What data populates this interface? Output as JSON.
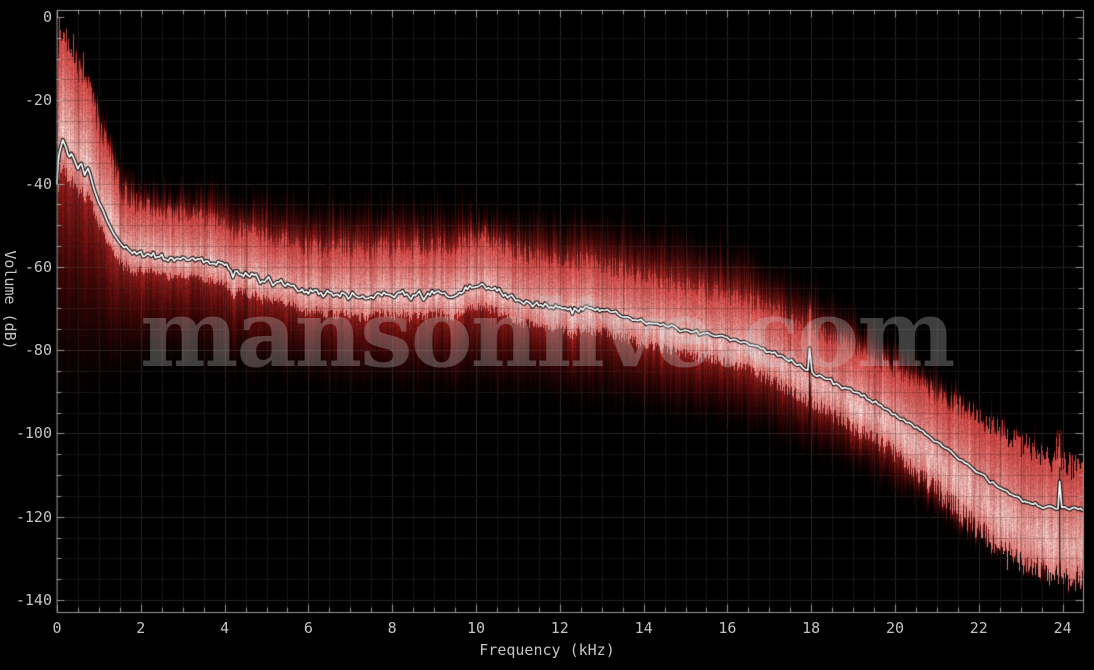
{
  "watermark": {
    "text": "mansonlive.com"
  },
  "chart_data": {
    "type": "area",
    "title": "",
    "xlabel": "Frequency (kHz)",
    "ylabel": "Volume (dB)",
    "xlim": [
      0,
      24
    ],
    "ylim": [
      -140,
      0
    ],
    "grid": true,
    "x_ticks": [
      0,
      2,
      4,
      6,
      8,
      10,
      12,
      14,
      16,
      18,
      20,
      22,
      24
    ],
    "y_ticks": [
      0,
      -20,
      -40,
      -60,
      -80,
      -100,
      -120,
      -140
    ],
    "x_minor_step": 0.5,
    "y_minor_step": 5,
    "series": [
      {
        "name": "average-spectrum-line",
        "unit": "dB",
        "points": [
          [
            0,
            -40
          ],
          [
            0.03,
            -34.5
          ],
          [
            0.06,
            -32.5
          ],
          [
            0.1,
            -31
          ],
          [
            0.14,
            -29.5
          ],
          [
            0.18,
            -30.5
          ],
          [
            0.22,
            -31.5
          ],
          [
            0.26,
            -33
          ],
          [
            0.3,
            -33.6
          ],
          [
            0.34,
            -32.8
          ],
          [
            0.38,
            -33.5
          ],
          [
            0.42,
            -34.5
          ],
          [
            0.46,
            -35.5
          ],
          [
            0.5,
            -36.5
          ],
          [
            0.54,
            -35.6
          ],
          [
            0.58,
            -35.2
          ],
          [
            0.62,
            -36.5
          ],
          [
            0.66,
            -38
          ],
          [
            0.7,
            -37
          ],
          [
            0.74,
            -36.3
          ],
          [
            0.78,
            -37.5
          ],
          [
            0.82,
            -39
          ],
          [
            0.86,
            -40.5
          ],
          [
            0.9,
            -41.8
          ],
          [
            0.95,
            -43.2
          ],
          [
            1,
            -44.6
          ],
          [
            1.05,
            -45.5
          ],
          [
            1.1,
            -46.5
          ],
          [
            1.15,
            -47.8
          ],
          [
            1.2,
            -49
          ],
          [
            1.25,
            -50
          ],
          [
            1.3,
            -51
          ],
          [
            1.35,
            -52
          ],
          [
            1.4,
            -52.8
          ],
          [
            1.45,
            -53.5
          ],
          [
            1.5,
            -54.2
          ],
          [
            1.55,
            -54.8
          ],
          [
            1.6,
            -55.4
          ],
          [
            1.65,
            -55.1
          ],
          [
            1.7,
            -55.8
          ],
          [
            1.75,
            -56.2
          ],
          [
            1.8,
            -56.8
          ],
          [
            1.85,
            -56.3
          ],
          [
            1.9,
            -57
          ],
          [
            1.95,
            -56.6
          ],
          [
            2,
            -56.3
          ],
          [
            2.1,
            -57.4
          ],
          [
            2.2,
            -57
          ],
          [
            2.3,
            -56.6
          ],
          [
            2.4,
            -57.6
          ],
          [
            2.5,
            -57
          ],
          [
            2.6,
            -58.2
          ],
          [
            2.7,
            -57.8
          ],
          [
            2.8,
            -58.6
          ],
          [
            2.9,
            -58
          ],
          [
            3,
            -57.7
          ],
          [
            3.1,
            -58.4
          ],
          [
            3.2,
            -58
          ],
          [
            3.3,
            -58.5
          ],
          [
            3.4,
            -58.2
          ],
          [
            3.5,
            -59
          ],
          [
            3.6,
            -58.6
          ],
          [
            3.7,
            -59.2
          ],
          [
            3.8,
            -59.6
          ],
          [
            3.9,
            -59
          ],
          [
            4,
            -59.6
          ],
          [
            4.1,
            -60.5
          ],
          [
            4.2,
            -62.6
          ],
          [
            4.3,
            -61
          ],
          [
            4.4,
            -61.8
          ],
          [
            4.5,
            -61.4
          ],
          [
            4.6,
            -62.4
          ],
          [
            4.7,
            -62
          ],
          [
            4.8,
            -62.8
          ],
          [
            4.9,
            -63.4
          ],
          [
            5,
            -63
          ],
          [
            5.1,
            -63.4
          ],
          [
            5.2,
            -64
          ],
          [
            5.3,
            -63.6
          ],
          [
            5.4,
            -64.2
          ],
          [
            5.5,
            -64
          ],
          [
            5.6,
            -64.6
          ],
          [
            5.7,
            -65.2
          ],
          [
            5.8,
            -65.8
          ],
          [
            5.9,
            -66.2
          ],
          [
            6,
            -66.5
          ],
          [
            6.1,
            -66
          ],
          [
            6.2,
            -65.6
          ],
          [
            6.3,
            -66.2
          ],
          [
            6.4,
            -66.6
          ],
          [
            6.5,
            -66.2
          ],
          [
            6.6,
            -67
          ],
          [
            6.7,
            -66.6
          ],
          [
            6.8,
            -66.2
          ],
          [
            6.9,
            -66.8
          ],
          [
            7,
            -67.2
          ],
          [
            7.1,
            -66.8
          ],
          [
            7.2,
            -67.4
          ],
          [
            7.3,
            -67
          ],
          [
            7.4,
            -67.6
          ],
          [
            7.5,
            -67.2
          ],
          [
            7.6,
            -66.8
          ],
          [
            7.7,
            -66.4
          ],
          [
            7.8,
            -66.1
          ],
          [
            7.9,
            -66.6
          ],
          [
            8,
            -67
          ],
          [
            8.1,
            -66.6
          ],
          [
            8.2,
            -66.2
          ],
          [
            8.3,
            -66.8
          ],
          [
            8.4,
            -67.2
          ],
          [
            8.5,
            -66.8
          ],
          [
            8.6,
            -66.4
          ],
          [
            8.7,
            -67
          ],
          [
            8.8,
            -67.2
          ],
          [
            8.9,
            -66.8
          ],
          [
            9,
            -66.4
          ],
          [
            9.1,
            -65.8
          ],
          [
            9.2,
            -66.4
          ],
          [
            9.3,
            -67
          ],
          [
            9.4,
            -67.3
          ],
          [
            9.5,
            -67
          ],
          [
            9.6,
            -66.2
          ],
          [
            9.7,
            -66
          ],
          [
            9.8,
            -65.4
          ],
          [
            9.9,
            -65
          ],
          [
            10,
            -64.8
          ],
          [
            10.1,
            -64.4
          ],
          [
            10.2,
            -64.6
          ],
          [
            10.3,
            -65
          ],
          [
            10.4,
            -65.4
          ],
          [
            10.5,
            -65.8
          ],
          [
            10.6,
            -66.2
          ],
          [
            10.7,
            -66.6
          ],
          [
            10.8,
            -67
          ],
          [
            10.9,
            -67.4
          ],
          [
            11,
            -68
          ],
          [
            11.1,
            -68.6
          ],
          [
            11.2,
            -68.2
          ],
          [
            11.3,
            -68.8
          ],
          [
            11.4,
            -69
          ],
          [
            11.5,
            -69.3
          ],
          [
            11.6,
            -69.6
          ],
          [
            11.7,
            -69.3
          ],
          [
            11.8,
            -69.6
          ],
          [
            11.9,
            -69.2
          ],
          [
            12,
            -69.6
          ],
          [
            12.1,
            -69.9
          ],
          [
            12.2,
            -70.3
          ],
          [
            12.3,
            -71.3
          ],
          [
            12.4,
            -70.3
          ],
          [
            12.5,
            -69.9
          ],
          [
            12.6,
            -69.6
          ],
          [
            12.7,
            -69.9
          ],
          [
            12.8,
            -70.2
          ],
          [
            12.9,
            -70
          ],
          [
            13,
            -70.3
          ],
          [
            13.2,
            -70.8
          ],
          [
            13.4,
            -71.4
          ],
          [
            13.6,
            -72
          ],
          [
            13.8,
            -72.8
          ],
          [
            14,
            -73.2
          ],
          [
            14.2,
            -73.6
          ],
          [
            14.4,
            -74
          ],
          [
            14.6,
            -74.4
          ],
          [
            14.8,
            -74.8
          ],
          [
            15,
            -75.2
          ],
          [
            15.2,
            -75.6
          ],
          [
            15.4,
            -76
          ],
          [
            15.6,
            -76.3
          ],
          [
            15.8,
            -76.6
          ],
          [
            16,
            -77
          ],
          [
            16.2,
            -77.5
          ],
          [
            16.4,
            -78
          ],
          [
            16.6,
            -78.8
          ],
          [
            16.8,
            -79.6
          ],
          [
            17,
            -80.4
          ],
          [
            17.2,
            -81.4
          ],
          [
            17.4,
            -82.2
          ],
          [
            17.6,
            -83.2
          ],
          [
            17.8,
            -84.2
          ],
          [
            17.92,
            -84.8
          ],
          [
            17.96,
            -79.5
          ],
          [
            18.02,
            -85.2
          ],
          [
            18.2,
            -86
          ],
          [
            18.4,
            -87
          ],
          [
            18.6,
            -88
          ],
          [
            18.8,
            -89
          ],
          [
            19,
            -90
          ],
          [
            19.2,
            -91
          ],
          [
            19.4,
            -92
          ],
          [
            19.6,
            -93
          ],
          [
            19.8,
            -94.2
          ],
          [
            20,
            -95.4
          ],
          [
            20.2,
            -96.6
          ],
          [
            20.4,
            -97.8
          ],
          [
            20.6,
            -99.2
          ],
          [
            20.8,
            -100.6
          ],
          [
            21,
            -102
          ],
          [
            21.2,
            -103.5
          ],
          [
            21.4,
            -105
          ],
          [
            21.6,
            -106.5
          ],
          [
            21.8,
            -108
          ],
          [
            22,
            -109.5
          ],
          [
            22.2,
            -111
          ],
          [
            22.4,
            -112.4
          ],
          [
            22.6,
            -113.6
          ],
          [
            22.8,
            -114.8
          ],
          [
            23,
            -115.8
          ],
          [
            23.1,
            -116.3
          ],
          [
            23.2,
            -116.6
          ],
          [
            23.3,
            -117
          ],
          [
            23.4,
            -117.3
          ],
          [
            23.6,
            -117.7
          ],
          [
            23.8,
            -117.9
          ],
          [
            23.89,
            -118.1
          ],
          [
            23.93,
            -111.5
          ],
          [
            23.98,
            -117.8
          ],
          [
            24.1,
            -118
          ],
          [
            24.5,
            -118.4
          ]
        ]
      }
    ],
    "density_envelopes": {
      "haze_top_db": [
        [
          0,
          -2
        ],
        [
          0.3,
          -6
        ],
        [
          0.6,
          -11
        ],
        [
          0.9,
          -17
        ],
        [
          1.2,
          -26
        ],
        [
          1.5,
          -33
        ],
        [
          2,
          -39
        ],
        [
          3,
          -40
        ],
        [
          4,
          -40
        ],
        [
          5,
          -42
        ],
        [
          6,
          -42.5
        ],
        [
          7,
          -43
        ],
        [
          8,
          -43
        ],
        [
          9,
          -44
        ],
        [
          10,
          -45
        ],
        [
          11,
          -45.5
        ],
        [
          12,
          -46
        ],
        [
          13,
          -47
        ],
        [
          14,
          -48.5
        ],
        [
          15,
          -50.5
        ],
        [
          16,
          -53
        ],
        [
          17,
          -57.5
        ],
        [
          18,
          -63
        ],
        [
          19,
          -70
        ],
        [
          20,
          -77.5
        ],
        [
          21,
          -86
        ],
        [
          22,
          -94.5
        ],
        [
          23,
          -102
        ],
        [
          24,
          -107
        ],
        [
          24.5,
          -109
        ]
      ],
      "bright_above_mean_db": [
        [
          0,
          32
        ],
        [
          0.5,
          26
        ],
        [
          1,
          18
        ],
        [
          1.5,
          13
        ],
        [
          2,
          11
        ],
        [
          4,
          10
        ],
        [
          6,
          10.5
        ],
        [
          8,
          11
        ],
        [
          10,
          11.5
        ],
        [
          12,
          11
        ],
        [
          14,
          10.5
        ],
        [
          16,
          10
        ],
        [
          18,
          10
        ],
        [
          20,
          10
        ],
        [
          21,
          11
        ],
        [
          22,
          13
        ],
        [
          23,
          15
        ],
        [
          24,
          16
        ],
        [
          24.5,
          16
        ]
      ],
      "bright_below_mean_db": [
        [
          0,
          6
        ],
        [
          2,
          4
        ],
        [
          8,
          4.5
        ],
        [
          14,
          5
        ],
        [
          16,
          5.5
        ],
        [
          18,
          7
        ],
        [
          20,
          9
        ],
        [
          21,
          11
        ],
        [
          22,
          13
        ],
        [
          23,
          15
        ],
        [
          24,
          16
        ],
        [
          24.5,
          16
        ]
      ],
      "fade_bottom_db": [
        [
          0,
          -97
        ],
        [
          0.5,
          -95
        ],
        [
          1,
          -92
        ],
        [
          1.5,
          -89
        ],
        [
          2,
          -86.5
        ],
        [
          3,
          -86
        ],
        [
          4,
          -88
        ],
        [
          5,
          -89
        ],
        [
          6,
          -90
        ],
        [
          8,
          -92
        ],
        [
          10,
          -92.5
        ],
        [
          12,
          -94
        ],
        [
          14,
          -96.5
        ],
        [
          16,
          -99.5
        ],
        [
          17,
          -102
        ],
        [
          18,
          -106
        ],
        [
          19,
          -110.5
        ],
        [
          20,
          -115.5
        ],
        [
          21,
          -121
        ],
        [
          22,
          -127
        ],
        [
          23,
          -132.5
        ],
        [
          24,
          -136
        ],
        [
          24.5,
          -137
        ]
      ]
    },
    "narrow_spikes": [
      {
        "freq_khz": 17.96,
        "bright_from_db": -73,
        "bright_to_db": -85,
        "dark_from_db": -85,
        "dark_to_db": -102
      },
      {
        "freq_khz": 23.93,
        "bright_from_db": -101,
        "bright_to_db": -131,
        "dark_from_db": -108,
        "dark_to_db": -139
      }
    ],
    "colors": {
      "background": "#000000",
      "grid_minor": "#1c1c1c",
      "grid_major": "#2e2e2e",
      "frame": "#9a9a9a",
      "red_base": "#b01414",
      "core_bright": "#f7e9e5",
      "line": "#ffffff",
      "line_outline": "#0a0606",
      "text": "#c4c4c4"
    }
  }
}
